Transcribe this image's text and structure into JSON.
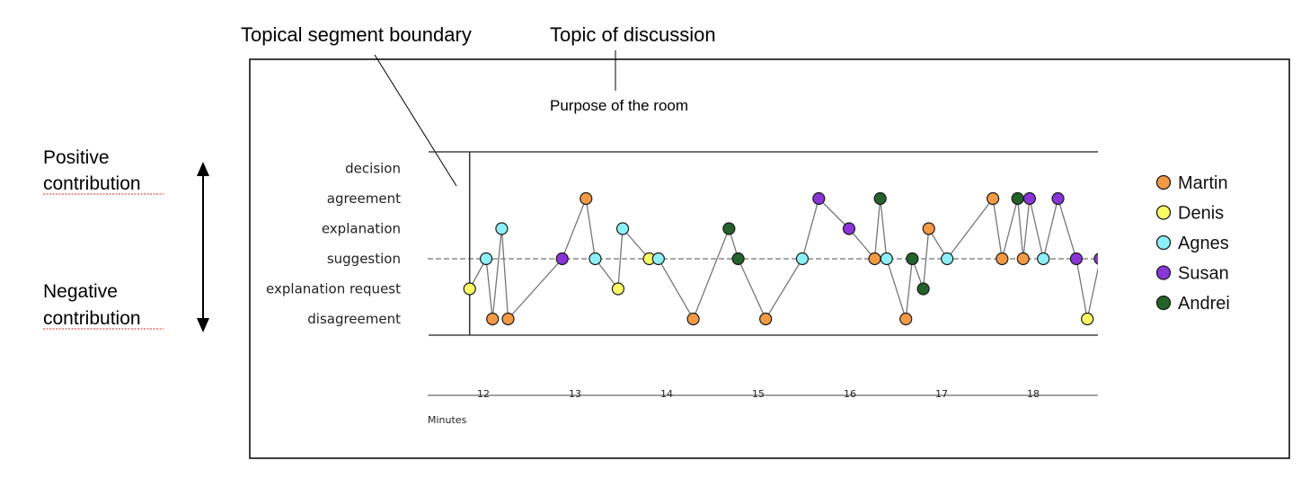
{
  "annotations": {
    "boundary_label": "Topical segment boundary",
    "topic_label": "Topic of discussion",
    "topic": "Purpose of the room",
    "positive_line1": "Positive",
    "positive_line2": "contribution",
    "negative_line1": "Negative",
    "negative_line2": "contribution"
  },
  "chart_data": {
    "type": "scatter",
    "xlabel": "Minutes",
    "x_ticks": [
      12,
      13,
      14,
      15,
      16,
      17,
      18
    ],
    "xlim": [
      11.6,
      18.73
    ],
    "categories": [
      "disagreement",
      "explanation request",
      "suggestion",
      "explanation",
      "agreement",
      "decision"
    ],
    "baseline": "suggestion",
    "segment_boundary_minute": 11.85,
    "colors": {
      "Martin": "#f29a45",
      "Denis": "#fbfb66",
      "Agnes": "#8df0f8",
      "Susan": "#8a35d8",
      "Andrei": "#24622b"
    },
    "legend": [
      "Martin",
      "Denis",
      "Agnes",
      "Susan",
      "Andrei"
    ],
    "points": [
      {
        "x": 11.85,
        "y": "explanation request",
        "speaker": "Denis"
      },
      {
        "x": 12.03,
        "y": "suggestion",
        "speaker": "Agnes"
      },
      {
        "x": 12.1,
        "y": "disagreement",
        "speaker": "Martin"
      },
      {
        "x": 12.2,
        "y": "explanation",
        "speaker": "Agnes"
      },
      {
        "x": 12.27,
        "y": "disagreement",
        "speaker": "Martin"
      },
      {
        "x": 12.86,
        "y": "suggestion",
        "speaker": "Susan"
      },
      {
        "x": 13.12,
        "y": "agreement",
        "speaker": "Martin"
      },
      {
        "x": 13.22,
        "y": "suggestion",
        "speaker": "Agnes"
      },
      {
        "x": 13.47,
        "y": "explanation request",
        "speaker": "Denis"
      },
      {
        "x": 13.52,
        "y": "explanation",
        "speaker": "Agnes"
      },
      {
        "x": 13.81,
        "y": "suggestion",
        "speaker": "Denis"
      },
      {
        "x": 13.91,
        "y": "suggestion",
        "speaker": "Agnes"
      },
      {
        "x": 14.29,
        "y": "disagreement",
        "speaker": "Martin"
      },
      {
        "x": 14.68,
        "y": "explanation",
        "speaker": "Andrei"
      },
      {
        "x": 14.78,
        "y": "suggestion",
        "speaker": "Andrei"
      },
      {
        "x": 15.08,
        "y": "disagreement",
        "speaker": "Martin"
      },
      {
        "x": 15.48,
        "y": "suggestion",
        "speaker": "Agnes"
      },
      {
        "x": 15.66,
        "y": "agreement",
        "speaker": "Susan"
      },
      {
        "x": 15.99,
        "y": "explanation",
        "speaker": "Susan"
      },
      {
        "x": 16.27,
        "y": "suggestion",
        "speaker": "Martin"
      },
      {
        "x": 16.33,
        "y": "agreement",
        "speaker": "Andrei"
      },
      {
        "x": 16.4,
        "y": "suggestion",
        "speaker": "Agnes"
      },
      {
        "x": 16.61,
        "y": "disagreement",
        "speaker": "Martin"
      },
      {
        "x": 16.68,
        "y": "suggestion",
        "speaker": "Andrei"
      },
      {
        "x": 16.8,
        "y": "explanation request",
        "speaker": "Andrei"
      },
      {
        "x": 16.86,
        "y": "explanation",
        "speaker": "Martin"
      },
      {
        "x": 17.06,
        "y": "suggestion",
        "speaker": "Agnes"
      },
      {
        "x": 17.56,
        "y": "agreement",
        "speaker": "Martin"
      },
      {
        "x": 17.66,
        "y": "suggestion",
        "speaker": "Martin"
      },
      {
        "x": 17.83,
        "y": "agreement",
        "speaker": "Andrei"
      },
      {
        "x": 17.89,
        "y": "suggestion",
        "speaker": "Martin"
      },
      {
        "x": 17.96,
        "y": "agreement",
        "speaker": "Susan"
      },
      {
        "x": 18.11,
        "y": "suggestion",
        "speaker": "Agnes"
      },
      {
        "x": 18.27,
        "y": "agreement",
        "speaker": "Susan"
      },
      {
        "x": 18.47,
        "y": "suggestion",
        "speaker": "Susan"
      },
      {
        "x": 18.59,
        "y": "disagreement",
        "speaker": "Denis"
      },
      {
        "x": 18.73,
        "y": "suggestion",
        "speaker": "Susan"
      }
    ]
  }
}
